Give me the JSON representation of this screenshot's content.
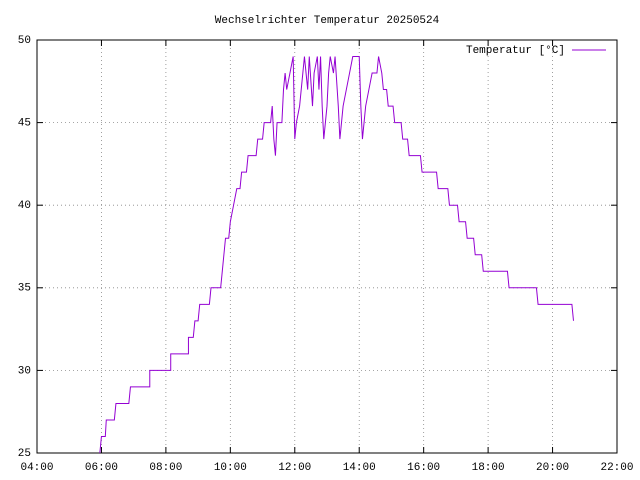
{
  "chart_data": {
    "type": "line",
    "title": "Wechselrichter Temperatur 20250524",
    "x": [
      5.95,
      6.0,
      6.12,
      6.15,
      6.4,
      6.45,
      6.85,
      6.9,
      7.5,
      7.5,
      8.15,
      8.15,
      8.7,
      8.7,
      8.85,
      8.9,
      9.0,
      9.05,
      9.35,
      9.4,
      9.7,
      9.75,
      9.8,
      9.85,
      9.95,
      10.0,
      10.1,
      10.2,
      10.3,
      10.35,
      10.5,
      10.55,
      10.8,
      10.85,
      11.0,
      11.05,
      11.25,
      11.3,
      11.35,
      11.4,
      11.45,
      11.6,
      11.65,
      11.7,
      11.75,
      11.85,
      11.95,
      12.0,
      12.05,
      12.15,
      12.25,
      12.3,
      12.4,
      12.45,
      12.55,
      12.6,
      12.7,
      12.75,
      12.8,
      12.85,
      12.9,
      13.0,
      13.05,
      13.1,
      13.2,
      13.25,
      13.35,
      13.4,
      13.5,
      13.6,
      13.7,
      13.8,
      14.0,
      14.05,
      14.1,
      14.2,
      14.3,
      14.4,
      14.55,
      14.6,
      14.7,
      14.75,
      14.85,
      14.9,
      15.05,
      15.1,
      15.3,
      15.35,
      15.5,
      15.55,
      15.9,
      15.95,
      16.4,
      16.45,
      16.75,
      16.8,
      17.05,
      17.1,
      17.3,
      17.35,
      17.55,
      17.6,
      17.8,
      17.85,
      18.6,
      18.65,
      19.5,
      19.55,
      20.6,
      20.65
    ],
    "series": [
      {
        "name": "Temperatur [°C]",
        "color": "#9400d3",
        "values": [
          25,
          26,
          26,
          27,
          27,
          28,
          28,
          29,
          29,
          30,
          30,
          31,
          31,
          32,
          32,
          33,
          33,
          34,
          34,
          35,
          35,
          36,
          37,
          38,
          38,
          39,
          40,
          41,
          41,
          42,
          42,
          43,
          43,
          44,
          44,
          45,
          45,
          46,
          44,
          43,
          45,
          45,
          47,
          48,
          47,
          48,
          49,
          44,
          45,
          46,
          48,
          49,
          47,
          49,
          46,
          48,
          49,
          47,
          49,
          46,
          44,
          46,
          48,
          49,
          48,
          49,
          46,
          44,
          46,
          47,
          48,
          49,
          49,
          46,
          44,
          46,
          47,
          48,
          48,
          49,
          48,
          47,
          47,
          46,
          46,
          45,
          45,
          44,
          44,
          43,
          43,
          42,
          42,
          41,
          41,
          40,
          40,
          39,
          39,
          38,
          38,
          37,
          37,
          36,
          36,
          35,
          35,
          34,
          34,
          33
        ]
      }
    ],
    "xlim": [
      4,
      22
    ],
    "xticks": [
      {
        "value": 4,
        "label": "04:00"
      },
      {
        "value": 6,
        "label": "06:00"
      },
      {
        "value": 8,
        "label": "08:00"
      },
      {
        "value": 10,
        "label": "10:00"
      },
      {
        "value": 12,
        "label": "12:00"
      },
      {
        "value": 14,
        "label": "14:00"
      },
      {
        "value": 16,
        "label": "16:00"
      },
      {
        "value": 18,
        "label": "18:00"
      },
      {
        "value": 20,
        "label": "20:00"
      },
      {
        "value": 22,
        "label": "22:00"
      }
    ],
    "ylim": [
      25,
      50
    ],
    "yticks": [
      25,
      30,
      35,
      40,
      45,
      50
    ],
    "grid": true,
    "legend": "top-right"
  }
}
